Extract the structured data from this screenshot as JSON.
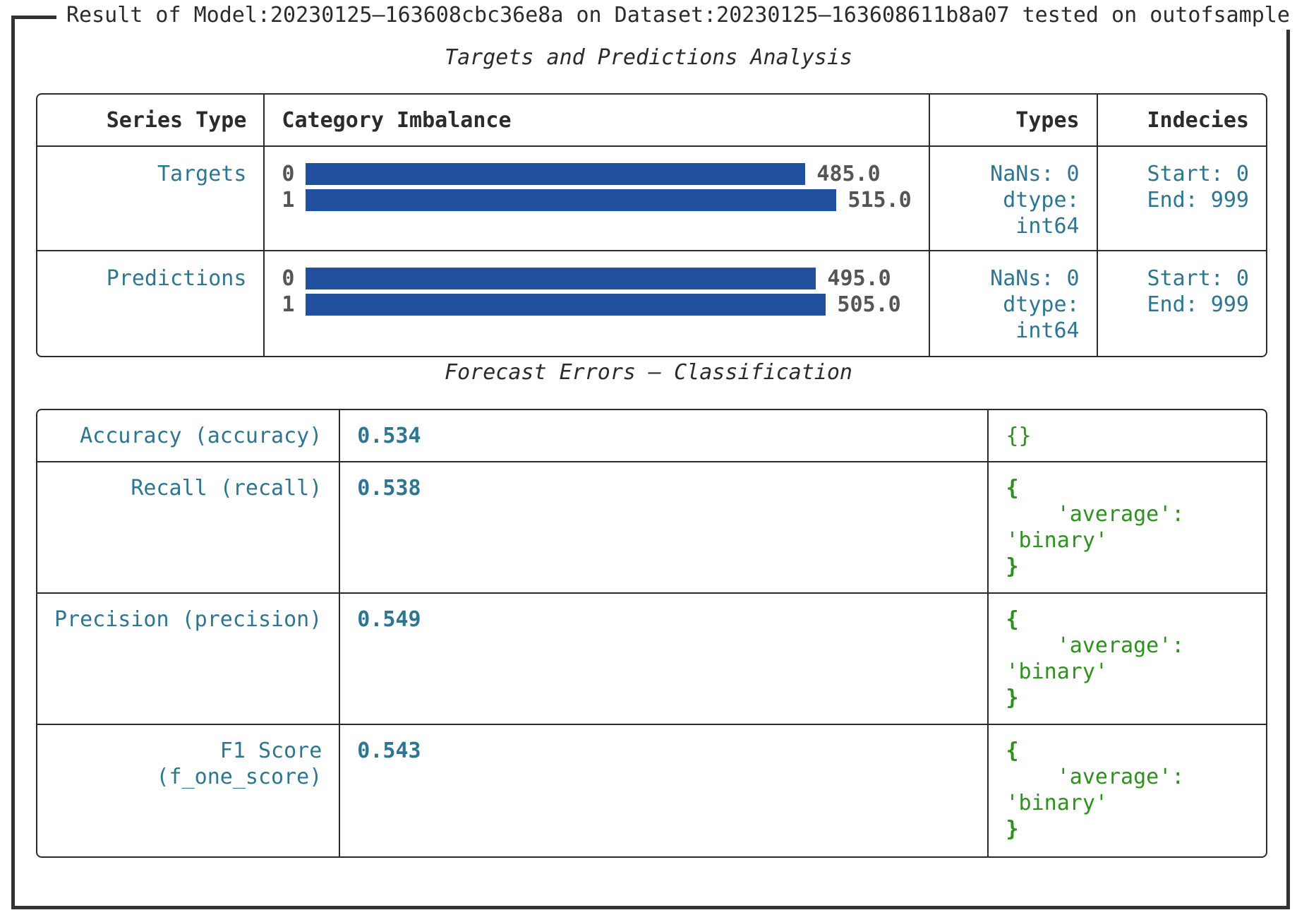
{
  "frame": {
    "title": "Result of Model:20230125–163608cbc36e8a on Dataset:20230125–163608611b8a07 tested on outofsample"
  },
  "analysis": {
    "title": "Targets and Predictions Analysis",
    "headers": {
      "series_type": "Series Type",
      "category_imbalance": "Category Imbalance",
      "types": "Types",
      "indices": "Indecies"
    },
    "rows": [
      {
        "series": "Targets",
        "bars": [
          {
            "label": "0",
            "value": 485.0,
            "display": "485.0"
          },
          {
            "label": "1",
            "value": 515.0,
            "display": "515.0"
          }
        ],
        "nans": "NaNs: 0",
        "dtype_label": "dtype:",
        "dtype_value": "int64",
        "start": "Start: 0",
        "end": "End: 999"
      },
      {
        "series": "Predictions",
        "bars": [
          {
            "label": "0",
            "value": 495.0,
            "display": "495.0"
          },
          {
            "label": "1",
            "value": 505.0,
            "display": "505.0"
          }
        ],
        "nans": "NaNs: 0",
        "dtype_label": "dtype:",
        "dtype_value": "int64",
        "start": "Start: 0",
        "end": "End: 999"
      }
    ]
  },
  "errors": {
    "title": "Forecast Errors – Classification",
    "rows": [
      {
        "name": [
          "Accuracy (accuracy)"
        ],
        "value": "0.534",
        "params": [
          "{}"
        ]
      },
      {
        "name": [
          "Recall (recall)"
        ],
        "value": "0.538",
        "params": [
          "{",
          "    'average':",
          "'binary'",
          "}"
        ]
      },
      {
        "name": [
          "Precision (precision)"
        ],
        "value": "0.549",
        "params": [
          "{",
          "    'average':",
          "'binary'",
          "}"
        ]
      },
      {
        "name": [
          "F1 Score",
          "(f_one_score)"
        ],
        "value": "0.543",
        "params": [
          "{",
          "    'average':",
          "'binary'",
          "}"
        ]
      }
    ]
  },
  "colors": {
    "bar": "#21509e",
    "teal": "#2e7590",
    "green": "#2f8f1f"
  }
}
